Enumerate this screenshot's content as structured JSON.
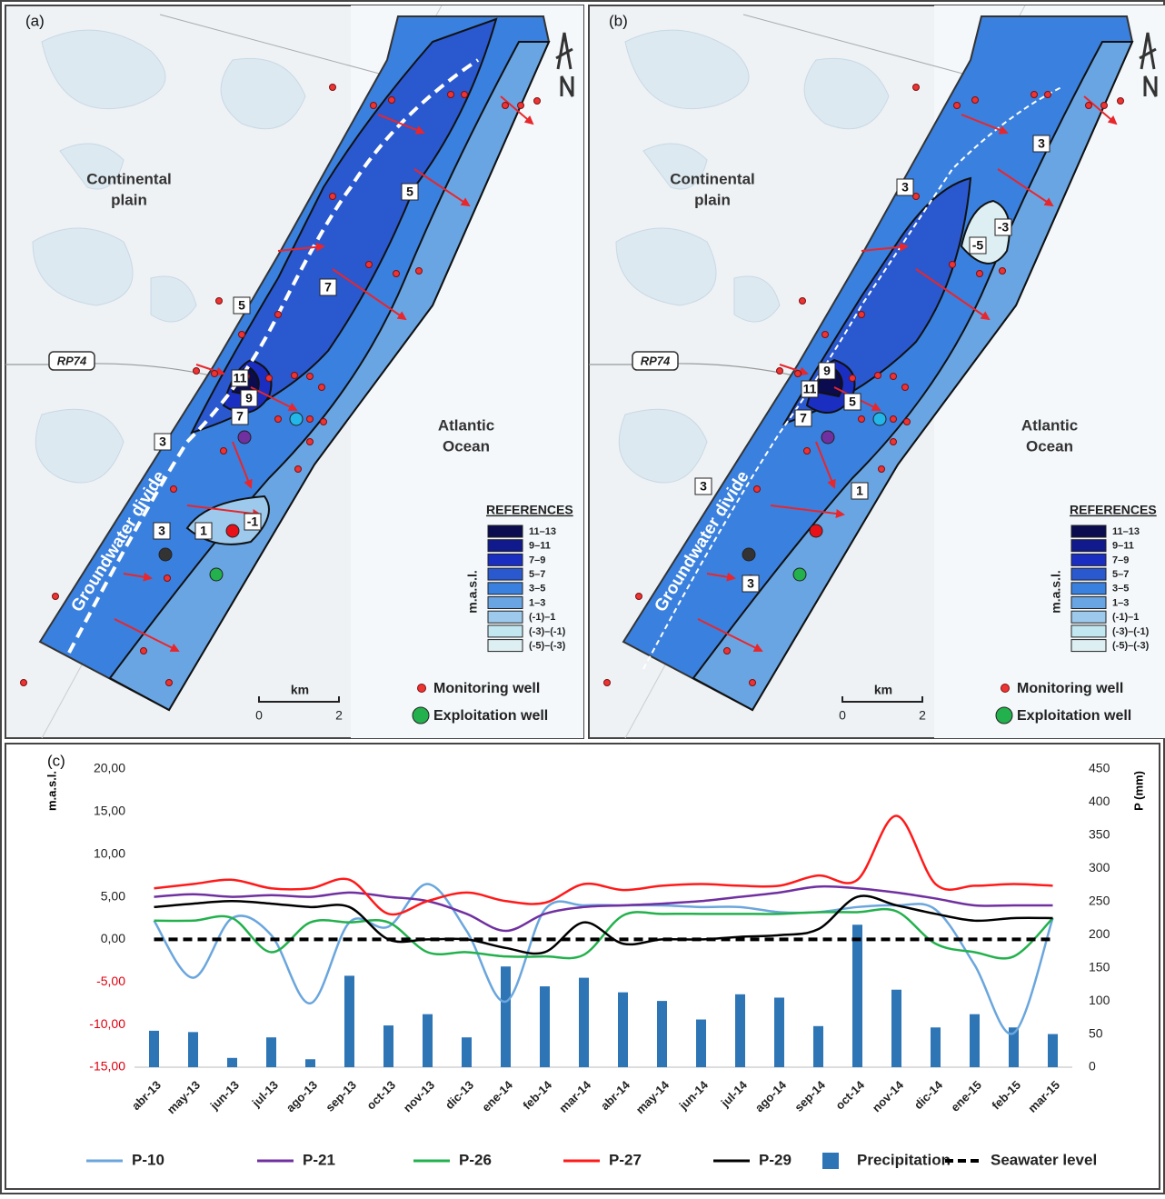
{
  "panels": [
    {
      "label": "(a)",
      "continental": [
        "Continental",
        "plain"
      ],
      "ocean": [
        "Atlantic",
        "Ocean"
      ],
      "road": "RP74",
      "divide": "Groundwater divide",
      "contour_labels": [
        3,
        5,
        7,
        5,
        11,
        9,
        7,
        -1,
        1,
        3
      ],
      "references_title": "REFERENCES",
      "unit_label": "m.a.s.l.",
      "legend_classes": [
        {
          "label": "11–13",
          "color": "#0b0b4f"
        },
        {
          "label": "9–11",
          "color": "#111a8c"
        },
        {
          "label": "7–9",
          "color": "#1a2fc2"
        },
        {
          "label": "5–7",
          "color": "#2a58cf"
        },
        {
          "label": "3–5",
          "color": "#3a80de"
        },
        {
          "label": "1–3",
          "color": "#6aa5e3"
        },
        {
          "label": "(-1)–1",
          "color": "#9dc9ec"
        },
        {
          "label": "(-3)–(-1)",
          "color": "#c2e7f1"
        },
        {
          "label": "(-5)–(-3)",
          "color": "#ddeff2"
        }
      ],
      "monitoring_well": "Monitoring well",
      "exploitation_well": "Exploitation well",
      "scale": {
        "unit": "km",
        "ticks": [
          0,
          2
        ]
      }
    },
    {
      "label": "(b)",
      "continental": [
        "Continental",
        "plain"
      ],
      "ocean": [
        "Atlantic",
        "Ocean"
      ],
      "road": "RP74",
      "divide": "Groundwater divide",
      "contour_labels": [
        3,
        3,
        -3,
        -5,
        11,
        9,
        5,
        7,
        3,
        1,
        3
      ],
      "references_title": "REFERENCES",
      "unit_label": "m.a.s.l.",
      "legend_classes": [
        {
          "label": "11–13",
          "color": "#0b0b4f"
        },
        {
          "label": "9–11",
          "color": "#111a8c"
        },
        {
          "label": "7–9",
          "color": "#1a2fc2"
        },
        {
          "label": "5–7",
          "color": "#2a58cf"
        },
        {
          "label": "3–5",
          "color": "#3a80de"
        },
        {
          "label": "1–3",
          "color": "#6aa5e3"
        },
        {
          "label": "(-1)–1",
          "color": "#9dc9ec"
        },
        {
          "label": "(-3)–(-1)",
          "color": "#c2e7f1"
        },
        {
          "label": "(-5)–(-3)",
          "color": "#ddeff2"
        }
      ],
      "monitoring_well": "Monitoring well",
      "exploitation_well": "Exploitation well",
      "scale": {
        "unit": "km",
        "ticks": [
          0,
          2
        ]
      }
    }
  ],
  "chart_data": {
    "type": "line",
    "panel_label": "(c)",
    "y_label": "m.a.s.l.",
    "y2_label": "P (mm)",
    "categories": [
      "abr-13",
      "may-13",
      "jun-13",
      "jul-13",
      "ago-13",
      "sep-13",
      "oct-13",
      "nov-13",
      "dic-13",
      "ene-14",
      "feb-14",
      "mar-14",
      "abr-14",
      "may-14",
      "jun-14",
      "jul-14",
      "ago-14",
      "sep-14",
      "oct-14",
      "nov-14",
      "dic-14",
      "ene-15",
      "feb-15",
      "mar-15"
    ],
    "ylim": [
      -15,
      20
    ],
    "yticks": [
      {
        "value": -15,
        "label": "-15,00"
      },
      {
        "value": -10,
        "label": "-10,00"
      },
      {
        "value": -5,
        "label": "-5,00"
      },
      {
        "value": 0,
        "label": "0,00"
      },
      {
        "value": 5,
        "label": "5,00"
      },
      {
        "value": 10,
        "label": "10,00"
      },
      {
        "value": 15,
        "label": "15,00"
      },
      {
        "value": 20,
        "label": "20,00"
      }
    ],
    "y2lim": [
      0,
      450
    ],
    "y2ticks": [
      0,
      50,
      100,
      150,
      200,
      250,
      300,
      350,
      400,
      450
    ],
    "series": [
      {
        "name": "P-10",
        "color": "#6aa6dd",
        "values": [
          2.2,
          -4.5,
          2.5,
          0.5,
          -7.5,
          2,
          1.5,
          6.5,
          1,
          -7.3,
          3.5,
          4,
          4,
          4,
          3.8,
          3.8,
          3.2,
          3.2,
          3.8,
          4,
          3.5,
          -3,
          -11,
          2.5
        ]
      },
      {
        "name": "P-21",
        "color": "#7030a0",
        "values": [
          5,
          5.3,
          5,
          5.2,
          5,
          5.5,
          5,
          4.5,
          3,
          1,
          3,
          3.8,
          4,
          4.2,
          4.5,
          5,
          5.5,
          6.2,
          6,
          5.5,
          4.8,
          4,
          4,
          4
        ]
      },
      {
        "name": "P-26",
        "color": "#22b14c",
        "values": [
          2.2,
          2.2,
          2.5,
          -1.5,
          2,
          2,
          2,
          -1.5,
          -1.5,
          -2,
          -2,
          -1.8,
          2.8,
          3,
          3,
          3,
          3,
          3.2,
          3.2,
          3.3,
          -0.5,
          -1.5,
          -2,
          2.5
        ]
      },
      {
        "name": "P-27",
        "color": "#ff1a1a",
        "values": [
          6,
          6.5,
          7,
          6,
          6,
          7,
          3,
          4.5,
          5.5,
          4.5,
          4.3,
          6.5,
          5.8,
          6.3,
          6.5,
          6.3,
          6.3,
          7.5,
          7,
          14.5,
          6.5,
          6.3,
          6.5,
          6.3
        ]
      },
      {
        "name": "P-29",
        "color": "#000000",
        "values": [
          3.8,
          4.2,
          4.5,
          4.2,
          3.8,
          3.8,
          0,
          0,
          0,
          -1,
          -1.5,
          2,
          -0.5,
          0,
          0,
          0.3,
          0.5,
          1.2,
          5,
          4,
          3,
          2.2,
          2.5,
          2.5
        ]
      },
      {
        "name": "Precipitation",
        "type": "bar",
        "axis": "y2",
        "color": "#2e75b6",
        "values": [
          55,
          53,
          14,
          45,
          12,
          138,
          63,
          80,
          45,
          152,
          122,
          135,
          113,
          100,
          72,
          110,
          105,
          62,
          215,
          117,
          60,
          80,
          60,
          50
        ]
      },
      {
        "name": "Seawater level",
        "color": "#000000",
        "dashed": true,
        "values": [
          0,
          0,
          0,
          0,
          0,
          0,
          0,
          0,
          0,
          0,
          0,
          0,
          0,
          0,
          0,
          0,
          0,
          0,
          0,
          0,
          0,
          0,
          0,
          0
        ]
      }
    ]
  }
}
